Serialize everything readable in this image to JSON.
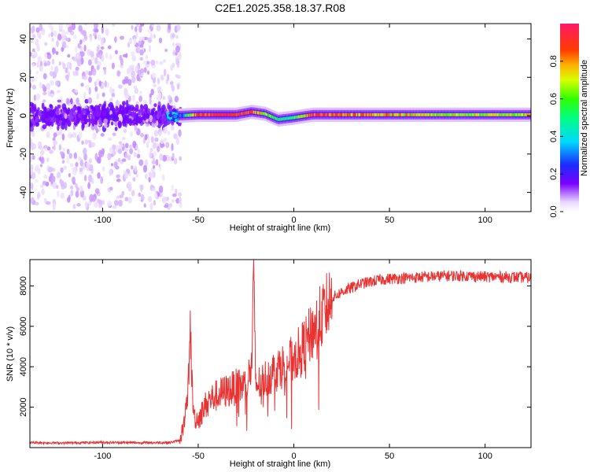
{
  "figure_title": "C2E1.2025.358.18.37.R08",
  "chart_data": [
    {
      "type": "heatmap",
      "title": "C2E1.2025.358.18.37.R08",
      "xlabel": "Height of straight line (km)",
      "ylabel": "Frequency (Hz)",
      "xlim": [
        -138,
        124
      ],
      "ylim": [
        -50,
        48
      ],
      "x_ticks": [
        -100,
        -50,
        0,
        50,
        100
      ],
      "y_ticks": [
        -40,
        -20,
        0,
        20,
        40
      ],
      "colorbar": {
        "label": "Normalized spectral amplitude",
        "range": [
          0,
          1
        ],
        "ticks": [
          0.0,
          0.2,
          0.4,
          0.6,
          0.8
        ]
      },
      "ridge": [
        {
          "x": -60,
          "freq": 0.0,
          "amp": 0.2
        },
        {
          "x": -50,
          "freq": 0.5,
          "amp": 0.9
        },
        {
          "x": -30,
          "freq": 0.5,
          "amp": 0.95
        },
        {
          "x": -22,
          "freq": 2.0,
          "amp": 0.9
        },
        {
          "x": -15,
          "freq": 1.0,
          "amp": 0.6
        },
        {
          "x": -8,
          "freq": -2.0,
          "amp": 0.5
        },
        {
          "x": 0,
          "freq": -1.0,
          "amp": 0.5
        },
        {
          "x": 10,
          "freq": 0.5,
          "amp": 0.9
        },
        {
          "x": 50,
          "freq": 0.5,
          "amp": 0.75
        },
        {
          "x": 90,
          "freq": 0.5,
          "amp": 0.65
        },
        {
          "x": 124,
          "freq": 0.5,
          "amp": 0.7
        }
      ],
      "noise_region": [
        -138,
        -62
      ]
    },
    {
      "type": "line",
      "xlabel": "Height of straight line (km)",
      "ylabel": "SNR (10 * v/v)",
      "xlim": [
        -138,
        124
      ],
      "ylim": [
        0,
        9300
      ],
      "x_ticks": [
        -100,
        -50,
        0,
        50,
        100
      ],
      "y_ticks": [
        2000,
        4000,
        6000,
        8000
      ],
      "series": [
        {
          "name": "SNR",
          "color": "#e83333",
          "x": [
            -138,
            -120,
            -100,
            -80,
            -65,
            -60,
            -57,
            -55,
            -54,
            -53,
            -52,
            -50,
            -45,
            -40,
            -35,
            -30,
            -25,
            -22,
            -21,
            -20,
            -19,
            -15,
            -10,
            -5,
            0,
            5,
            10,
            15,
            20,
            25,
            30,
            35,
            40,
            45,
            50,
            60,
            70,
            80,
            90,
            100,
            110,
            124
          ],
          "values": [
            250,
            230,
            260,
            240,
            250,
            350,
            1200,
            3500,
            5900,
            2500,
            1500,
            1400,
            2300,
            2600,
            2800,
            3000,
            3100,
            4000,
            8800,
            3200,
            3100,
            3400,
            3800,
            4100,
            4400,
            5000,
            5800,
            6600,
            7400,
            7700,
            7900,
            8100,
            8200,
            8300,
            8350,
            8400,
            8450,
            8500,
            8500,
            8450,
            8450,
            8400
          ]
        }
      ]
    }
  ]
}
